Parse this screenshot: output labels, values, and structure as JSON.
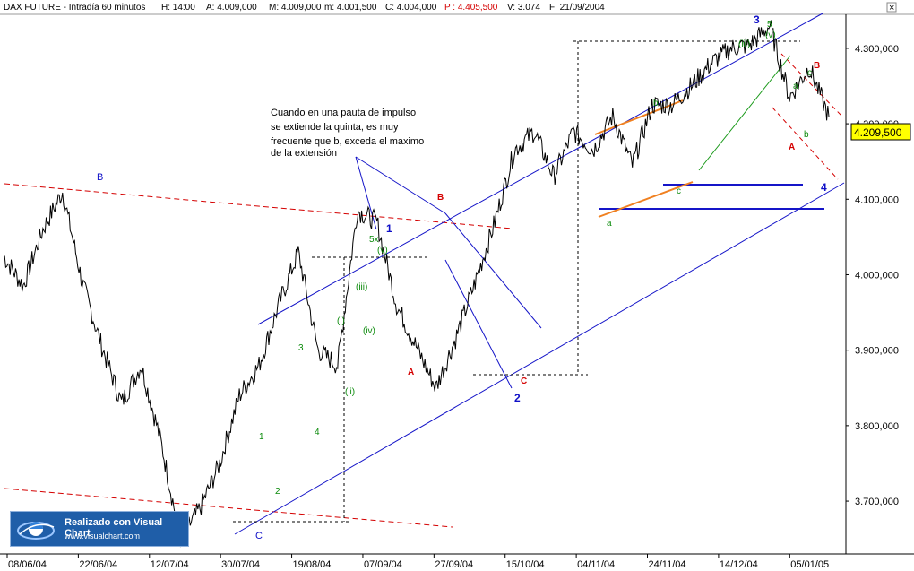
{
  "header": {
    "instrument": "DAX FUTURE - Intradía 60 minutos",
    "hour": "H: 14:00",
    "open": "A: 4.009,000",
    "high": "M: 4.009,000",
    "low": "m: 4.001,500",
    "close": "C: 4.004,000",
    "prev": "P : 4.405,500",
    "volume": "V: 3.074",
    "date": "F: 21/09/2004"
  },
  "close_button_label": "×",
  "last_price_label": "4.209,500",
  "annotation_text": [
    "Cuando en una pauta de impulso",
    "se extiende la quinta, es muy",
    "frecuente que b, exceda el maximo",
    "de la extensión"
  ],
  "watermark": {
    "title": "Realizado con Visual Chart",
    "url": "www.visualchart.com"
  },
  "colors": {
    "price_line": "#000000",
    "channel": "#1515c8",
    "trend_red": "#d40000",
    "wedge_green": "#1a9a1a",
    "orange": "#f08020",
    "wave_green": "#0a8a0a",
    "last_price_bg": "#ffff00"
  },
  "chart_data": {
    "type": "line",
    "ylim": [
      3630,
      4345
    ],
    "y_ticks": [
      "3.700,000",
      "3.800,000",
      "3.900,000",
      "4.000,000",
      "4.100,000",
      "4.200,000",
      "4.300,000"
    ],
    "y_tick_values": [
      3700,
      3800,
      3900,
      4000,
      4100,
      4200,
      4300
    ],
    "x_tick_labels": [
      "08/06/04",
      "22/06/04",
      "12/07/04",
      "30/07/04",
      "19/08/04",
      "07/09/04",
      "27/09/04",
      "15/10/04",
      "04/11/04",
      "24/11/04",
      "14/12/04",
      "05/01/05"
    ],
    "series": [
      {
        "x": [
          "08/06/04",
          "15/06/04",
          "22/06/04",
          "25/06/04",
          "02/07/04",
          "12/07/04",
          "20/07/04",
          "26/07/04",
          "30/07/04",
          "05/08/04",
          "12/08/04",
          "19/08/04",
          "26/08/04",
          "01/09/04",
          "07/09/04",
          "10/09/04",
          "15/09/04",
          "21/09/04",
          "27/09/04",
          "01/10/04",
          "06/10/04",
          "11/10/04",
          "15/10/04",
          "20/10/04",
          "25/10/04",
          "29/10/04",
          "04/11/04",
          "08/11/04",
          "12/11/04",
          "18/11/04",
          "24/11/04",
          "30/11/04",
          "03/12/04",
          "09/12/04",
          "14/12/04",
          "20/12/04",
          "27/12/04",
          "31/12/04",
          "05/01/05",
          "07/01/05",
          "12/01/05",
          "17/01/05",
          "20/01/05"
        ],
        "values": [
          4025,
          3985,
          4060,
          4110,
          3990,
          3905,
          3830,
          3880,
          3780,
          3650,
          3690,
          3750,
          3840,
          3880,
          3960,
          4030,
          3900,
          3880,
          4085,
          4070,
          3960,
          3905,
          3850,
          3915,
          3990,
          4070,
          4165,
          4190,
          4130,
          4190,
          4165,
          4210,
          4145,
          4225,
          4225,
          4250,
          4280,
          4300,
          4305,
          4330,
          4235,
          4275,
          4209.5
        ]
      }
    ],
    "annotations": [
      "1",
      "2",
      "3",
      "4",
      "5",
      "5x",
      "(i)",
      "(ii)",
      "(iii)",
      "(iv)",
      "(v)",
      "(iii)",
      "(v)",
      "A",
      "B",
      "C",
      "a",
      "b",
      "c",
      "B",
      "A",
      "a",
      "b",
      "c",
      "1",
      "2",
      "3",
      "4",
      "C",
      "B"
    ],
    "grid": false,
    "legend": "none"
  }
}
